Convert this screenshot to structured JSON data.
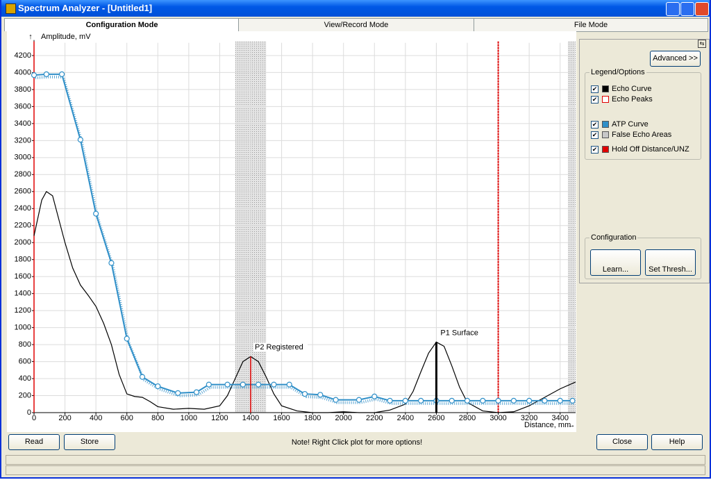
{
  "window": {
    "title": "Spectrum Analyzer - [Untitled1]"
  },
  "tabs": [
    "Configuration Mode",
    "View/Record Mode",
    "File Mode"
  ],
  "chart_data": {
    "type": "line",
    "y_label": "Amplitude, mV",
    "x_label": "Distance, mm",
    "xlim": [
      0,
      3500
    ],
    "ylim": [
      0,
      4350
    ],
    "xticks": [
      0,
      200,
      400,
      600,
      800,
      1000,
      1200,
      1400,
      1600,
      1800,
      2000,
      2200,
      2400,
      2600,
      2800,
      3000,
      3200,
      3400
    ],
    "yticks": [
      0,
      200,
      400,
      600,
      800,
      1000,
      1200,
      1400,
      1600,
      1800,
      2000,
      2200,
      2400,
      2600,
      2800,
      3000,
      3200,
      3400,
      3600,
      3800,
      4000,
      4200
    ],
    "grid": true,
    "series": [
      {
        "name": "Echo Curve",
        "color": "#000000",
        "x": [
          0,
          50,
          80,
          120,
          200,
          250,
          300,
          350,
          400,
          450,
          500,
          550,
          600,
          650,
          700,
          750,
          800,
          900,
          1000,
          1100,
          1200,
          1250,
          1300,
          1350,
          1400,
          1450,
          1500,
          1550,
          1600,
          1700,
          1800,
          1900,
          2000,
          2100,
          2200,
          2300,
          2400,
          2450,
          2500,
          2550,
          2600,
          2650,
          2700,
          2750,
          2800,
          2900,
          3000,
          3100,
          3200,
          3300,
          3400,
          3500
        ],
        "values": [
          2080,
          2500,
          2600,
          2550,
          2000,
          1700,
          1500,
          1380,
          1250,
          1050,
          800,
          450,
          220,
          190,
          180,
          130,
          70,
          40,
          50,
          40,
          80,
          200,
          400,
          600,
          660,
          600,
          420,
          220,
          80,
          20,
          0,
          0,
          10,
          0,
          0,
          30,
          100,
          250,
          480,
          700,
          830,
          780,
          550,
          300,
          120,
          20,
          0,
          10,
          80,
          180,
          280,
          360
        ]
      },
      {
        "name": "ATP Curve",
        "color": "#2f8fc8",
        "x": [
          0,
          80,
          180,
          300,
          400,
          500,
          600,
          700,
          800,
          930,
          1050,
          1130,
          1250,
          1350,
          1450,
          1550,
          1650,
          1750,
          1850,
          1950,
          2100,
          2200,
          2300,
          2400,
          2500,
          2600,
          2700,
          2800,
          2900,
          3000,
          3100,
          3200,
          3300,
          3400,
          3480
        ],
        "values": [
          3970,
          3980,
          3980,
          3210,
          2340,
          1760,
          870,
          420,
          310,
          230,
          240,
          330,
          330,
          330,
          330,
          330,
          330,
          220,
          210,
          150,
          150,
          190,
          140,
          140,
          140,
          140,
          140,
          140,
          140,
          140,
          140,
          140,
          140,
          140,
          140
        ]
      }
    ],
    "peaks": {
      "name": "Echo Peaks",
      "color": "#e00000",
      "items": [
        {
          "label": "P2 Registered",
          "x": 1400,
          "value": 660,
          "color": "#e00000"
        },
        {
          "label": "P1 Surface",
          "x": 2600,
          "value": 830,
          "color": "#000000"
        }
      ]
    },
    "false_echo": {
      "name": "False Echo Areas",
      "color": "#c8c8c8",
      "ranges": [
        [
          1300,
          1500
        ],
        [
          3450,
          3500
        ]
      ]
    },
    "hold_off": {
      "name": "Hold Off Distance/UNZ",
      "color": "#e00000",
      "x": [
        0,
        3000
      ]
    }
  },
  "panel": {
    "advanced": "Advanced >>",
    "legend_title": "Legend/Options",
    "config_title": "Configuration",
    "learn": "Learn...",
    "set_thresh": "Set Thresh..."
  },
  "footer": {
    "read": "Read",
    "store": "Store",
    "note": "Note!  Right Click plot for more options!",
    "close": "Close",
    "help": "Help"
  }
}
